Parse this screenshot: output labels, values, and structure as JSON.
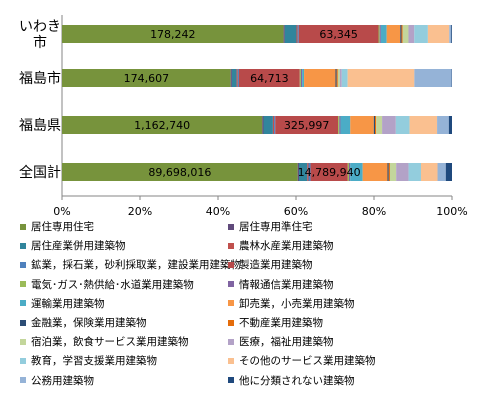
{
  "chart_data": {
    "type": "bar",
    "orientation": "horizontal",
    "stacked": "percent",
    "categories": [
      "いわき市",
      "福島市",
      "福島県",
      "全国計"
    ],
    "category_label_lines": [
      [
        "いわき",
        "市"
      ],
      [
        "福島市"
      ],
      [
        "福島県"
      ],
      [
        "全国計"
      ]
    ],
    "xlim": [
      0,
      100
    ],
    "x_ticks": [
      "0%",
      "20%",
      "40%",
      "60%",
      "80%",
      "100%"
    ],
    "grid": false,
    "legend_position": "bottom",
    "series": [
      {
        "name": "居住専用住宅",
        "color": "#77933c",
        "values": [
          57,
          43,
          51,
          57
        ]
      },
      {
        "name": "居住専用準住宅",
        "color": "#604a7b",
        "values": [
          0.3,
          0.3,
          0.3,
          0.3
        ]
      },
      {
        "name": "居住産業併用建築物",
        "color": "#31859c",
        "values": [
          3,
          1.2,
          2.4,
          2
        ]
      },
      {
        "name": "農林水産業用建築物",
        "color": "#c0504d",
        "values": [
          0.3,
          0.3,
          0.3,
          0.3
        ]
      },
      {
        "name": "鉱業，採石業，砂利採取業，建設業用建築物",
        "color": "#4f81bd",
        "values": [
          0.3,
          0.3,
          0.3,
          0.5
        ]
      },
      {
        "name": "製造業用建築物",
        "color": "#b84a4a",
        "values": [
          20.5,
          15.5,
          16,
          9
        ]
      },
      {
        "name": "電気･ガス･熱供給･水道業用建築物",
        "color": "#9bbb59",
        "values": [
          0.3,
          0.3,
          0.3,
          0.3
        ]
      },
      {
        "name": "情報通信業用建築物",
        "color": "#8064a2",
        "values": [
          0.3,
          0.3,
          0.3,
          0.3
        ]
      },
      {
        "name": "運輸業用建築物",
        "color": "#4bacc6",
        "values": [
          1.5,
          0.5,
          2.5,
          3
        ]
      },
      {
        "name": "卸売業，小売業用建築物",
        "color": "#f79646",
        "values": [
          3.5,
          8,
          6,
          6
        ]
      },
      {
        "name": "金融業，保険業用建築物",
        "color": "#2c4d75",
        "values": [
          0.3,
          0.3,
          0.3,
          0.3
        ]
      },
      {
        "name": "不動産業用建築物",
        "color": "#e46c0a",
        "values": [
          0.3,
          0.3,
          0.3,
          0.3
        ]
      },
      {
        "name": "宿泊業，飲食サービス業用建築物",
        "color": "#c3d69b",
        "values": [
          1.5,
          0.5,
          1.5,
          1.5
        ]
      },
      {
        "name": "医療，福祉用建築物",
        "color": "#b3a2c7",
        "values": [
          1.5,
          0.5,
          3.5,
          3
        ]
      },
      {
        "name": "教育，学習支援業用建築物",
        "color": "#93cddd",
        "values": [
          3.5,
          1.5,
          3.5,
          3
        ]
      },
      {
        "name": "その他のサービス業用建築物",
        "color": "#fac090",
        "values": [
          5.5,
          17,
          7,
          4
        ]
      },
      {
        "name": "公務用建築物",
        "color": "#95b3d7",
        "values": [
          0.5,
          9.5,
          3,
          2
        ]
      },
      {
        "name": "他に分類されない建築物",
        "color": "#1f497d",
        "values": [
          0.2,
          0.1,
          0.8,
          1.5
        ]
      }
    ],
    "data_labels": [
      {
        "category": 0,
        "series": 0,
        "text": "178,242"
      },
      {
        "category": 0,
        "series": 5,
        "text": "63,345"
      },
      {
        "category": 1,
        "series": 0,
        "text": "174,607"
      },
      {
        "category": 1,
        "series": 5,
        "text": "64,713"
      },
      {
        "category": 2,
        "series": 0,
        "text": "1,162,740"
      },
      {
        "category": 2,
        "series": 5,
        "text": "325,997"
      },
      {
        "category": 3,
        "series": 0,
        "text": "89,698,016"
      },
      {
        "category": 3,
        "series": 5,
        "text": "14,789,940"
      }
    ]
  }
}
